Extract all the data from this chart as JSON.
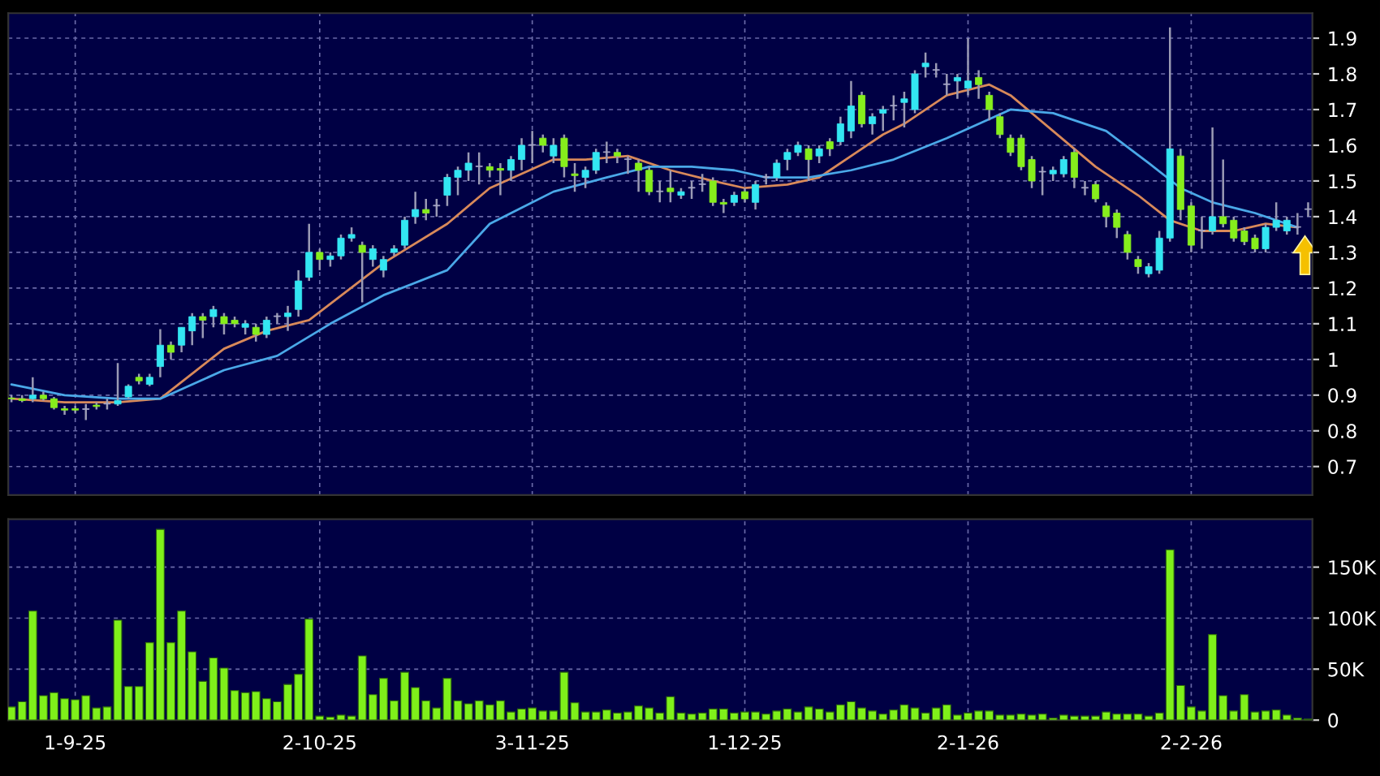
{
  "chart_data": [
    {
      "type": "candlestick",
      "tick_labels": "y",
      "grid": true,
      "categories": [
        null,
        null,
        null,
        null,
        null,
        null,
        null,
        null,
        null,
        null,
        null,
        null,
        null,
        null,
        null,
        null,
        null,
        null,
        null,
        null,
        null,
        null,
        null,
        null,
        null,
        null,
        null,
        null,
        null,
        null,
        null,
        null,
        null,
        null,
        null,
        null,
        null,
        null,
        null,
        null,
        null,
        null,
        null,
        null,
        null,
        null,
        null,
        null,
        null,
        null,
        null,
        null,
        null,
        null,
        null,
        null,
        null,
        null,
        null,
        null,
        null,
        null,
        null,
        null,
        null,
        null,
        null,
        null,
        null,
        null,
        null,
        null,
        null,
        null,
        null,
        null,
        null,
        null,
        null,
        null,
        null,
        null,
        null,
        null,
        null,
        null,
        null,
        null,
        null,
        null,
        null,
        null,
        null,
        null,
        null,
        null,
        null,
        null,
        null,
        null,
        null,
        null,
        null,
        null,
        null,
        null,
        null,
        null,
        null,
        null,
        null,
        null,
        null,
        null,
        null,
        null,
        null,
        null,
        null,
        null,
        null,
        null,
        null
      ],
      "ohlc": [
        [
          0.89,
          0.9,
          0.88,
          0.89
        ],
        [
          0.89,
          0.9,
          0.88,
          0.885
        ],
        [
          0.89,
          0.95,
          0.88,
          0.9
        ],
        [
          0.9,
          0.91,
          0.885,
          0.89
        ],
        [
          0.89,
          0.895,
          0.86,
          0.865
        ],
        [
          0.862,
          0.87,
          0.845,
          0.858
        ],
        [
          0.862,
          0.87,
          0.85,
          0.858
        ],
        [
          0.86,
          0.875,
          0.83,
          0.86
        ],
        [
          0.872,
          0.88,
          0.86,
          0.868
        ],
        [
          0.875,
          0.89,
          0.86,
          0.875
        ],
        [
          0.875,
          0.99,
          0.87,
          0.885
        ],
        [
          0.895,
          0.93,
          0.89,
          0.925
        ],
        [
          0.95,
          0.96,
          0.93,
          0.94
        ],
        [
          0.93,
          0.96,
          0.925,
          0.95
        ],
        [
          0.98,
          1.085,
          0.95,
          1.04
        ],
        [
          1.04,
          1.05,
          1.0,
          1.02
        ],
        [
          1.04,
          1.09,
          1.02,
          1.09
        ],
        [
          1.08,
          1.13,
          1.04,
          1.12
        ],
        [
          1.12,
          1.13,
          1.06,
          1.11
        ],
        [
          1.12,
          1.15,
          1.09,
          1.14
        ],
        [
          1.12,
          1.13,
          1.07,
          1.1
        ],
        [
          1.11,
          1.12,
          1.09,
          1.1
        ],
        [
          1.09,
          1.11,
          1.07,
          1.1
        ],
        [
          1.09,
          1.1,
          1.05,
          1.07
        ],
        [
          1.07,
          1.12,
          1.06,
          1.11
        ],
        [
          1.12,
          1.13,
          1.1,
          1.12
        ],
        [
          1.12,
          1.15,
          1.08,
          1.13
        ],
        [
          1.14,
          1.25,
          1.12,
          1.22
        ],
        [
          1.23,
          1.38,
          1.22,
          1.3
        ],
        [
          1.3,
          1.31,
          1.25,
          1.28
        ],
        [
          1.28,
          1.3,
          1.26,
          1.29
        ],
        [
          1.29,
          1.35,
          1.28,
          1.34
        ],
        [
          1.34,
          1.37,
          1.33,
          1.35
        ],
        [
          1.32,
          1.33,
          1.16,
          1.3
        ],
        [
          1.28,
          1.32,
          1.26,
          1.31
        ],
        [
          1.25,
          1.29,
          1.23,
          1.28
        ],
        [
          1.3,
          1.32,
          1.29,
          1.31
        ],
        [
          1.32,
          1.4,
          1.31,
          1.39
        ],
        [
          1.4,
          1.47,
          1.38,
          1.42
        ],
        [
          1.42,
          1.45,
          1.39,
          1.41
        ],
        [
          1.43,
          1.45,
          1.4,
          1.43
        ],
        [
          1.46,
          1.52,
          1.43,
          1.51
        ],
        [
          1.51,
          1.54,
          1.46,
          1.53
        ],
        [
          1.53,
          1.58,
          1.5,
          1.55
        ],
        [
          1.54,
          1.58,
          1.49,
          1.54
        ],
        [
          1.54,
          1.55,
          1.51,
          1.53
        ],
        [
          1.535,
          1.55,
          1.46,
          1.53
        ],
        [
          1.53,
          1.57,
          1.5,
          1.56
        ],
        [
          1.56,
          1.62,
          1.53,
          1.6
        ],
        [
          1.6,
          1.64,
          1.55,
          1.6
        ],
        [
          1.62,
          1.63,
          1.58,
          1.6
        ],
        [
          1.57,
          1.62,
          1.55,
          1.6
        ],
        [
          1.62,
          1.63,
          1.51,
          1.54
        ],
        [
          1.52,
          1.55,
          1.47,
          1.515
        ],
        [
          1.51,
          1.54,
          1.48,
          1.53
        ],
        [
          1.53,
          1.59,
          1.52,
          1.58
        ],
        [
          1.58,
          1.61,
          1.55,
          1.58
        ],
        [
          1.58,
          1.59,
          1.55,
          1.57
        ],
        [
          1.56,
          1.57,
          1.52,
          1.56
        ],
        [
          1.55,
          1.56,
          1.47,
          1.53
        ],
        [
          1.53,
          1.54,
          1.46,
          1.47
        ],
        [
          1.47,
          1.5,
          1.44,
          1.47
        ],
        [
          1.48,
          1.53,
          1.44,
          1.47
        ],
        [
          1.46,
          1.48,
          1.45,
          1.47
        ],
        [
          1.48,
          1.5,
          1.45,
          1.48
        ],
        [
          1.49,
          1.52,
          1.47,
          1.49
        ],
        [
          1.5,
          1.51,
          1.43,
          1.44
        ],
        [
          1.44,
          1.45,
          1.41,
          1.435
        ],
        [
          1.44,
          1.47,
          1.43,
          1.46
        ],
        [
          1.47,
          1.48,
          1.44,
          1.45
        ],
        [
          1.44,
          1.5,
          1.42,
          1.49
        ],
        [
          1.51,
          1.52,
          1.49,
          1.51
        ],
        [
          1.51,
          1.56,
          1.5,
          1.55
        ],
        [
          1.56,
          1.59,
          1.53,
          1.58
        ],
        [
          1.58,
          1.61,
          1.57,
          1.6
        ],
        [
          1.59,
          1.6,
          1.5,
          1.56
        ],
        [
          1.57,
          1.6,
          1.55,
          1.59
        ],
        [
          1.61,
          1.62,
          1.57,
          1.59
        ],
        [
          1.61,
          1.68,
          1.6,
          1.66
        ],
        [
          1.64,
          1.78,
          1.62,
          1.71
        ],
        [
          1.74,
          1.75,
          1.65,
          1.66
        ],
        [
          1.66,
          1.69,
          1.63,
          1.68
        ],
        [
          1.69,
          1.71,
          1.64,
          1.7
        ],
        [
          1.71,
          1.74,
          1.67,
          1.71
        ],
        [
          1.72,
          1.75,
          1.65,
          1.73
        ],
        [
          1.7,
          1.81,
          1.69,
          1.8
        ],
        [
          1.82,
          1.86,
          1.79,
          1.83
        ],
        [
          1.81,
          1.83,
          1.79,
          1.81
        ],
        [
          1.77,
          1.8,
          1.74,
          1.77
        ],
        [
          1.78,
          1.8,
          1.73,
          1.79
        ],
        [
          1.76,
          1.9,
          1.74,
          1.78
        ],
        [
          1.79,
          1.81,
          1.73,
          1.77
        ],
        [
          1.74,
          1.75,
          1.67,
          1.7
        ],
        [
          1.68,
          1.69,
          1.62,
          1.63
        ],
        [
          1.62,
          1.63,
          1.57,
          1.58
        ],
        [
          1.62,
          1.63,
          1.53,
          1.54
        ],
        [
          1.56,
          1.57,
          1.48,
          1.5
        ],
        [
          1.525,
          1.54,
          1.46,
          1.525
        ],
        [
          1.52,
          1.54,
          1.5,
          1.53
        ],
        [
          1.52,
          1.57,
          1.51,
          1.56
        ],
        [
          1.58,
          1.59,
          1.48,
          1.51
        ],
        [
          1.48,
          1.5,
          1.46,
          1.48
        ],
        [
          1.49,
          1.5,
          1.44,
          1.45
        ],
        [
          1.43,
          1.44,
          1.37,
          1.4
        ],
        [
          1.41,
          1.42,
          1.34,
          1.37
        ],
        [
          1.35,
          1.36,
          1.28,
          1.3
        ],
        [
          1.28,
          1.29,
          1.24,
          1.26
        ],
        [
          1.24,
          1.27,
          1.23,
          1.26
        ],
        [
          1.25,
          1.36,
          1.24,
          1.34
        ],
        [
          1.34,
          1.93,
          1.33,
          1.59
        ],
        [
          1.57,
          1.59,
          1.39,
          1.42
        ],
        [
          1.43,
          1.44,
          1.3,
          1.32
        ],
        [
          1.36,
          1.4,
          1.31,
          1.36
        ],
        [
          1.36,
          1.65,
          1.35,
          1.4
        ],
        [
          1.4,
          1.56,
          1.37,
          1.38
        ],
        [
          1.39,
          1.4,
          1.33,
          1.34
        ],
        [
          1.36,
          1.37,
          1.32,
          1.33
        ],
        [
          1.34,
          1.35,
          1.3,
          1.31
        ],
        [
          1.31,
          1.38,
          1.3,
          1.37
        ],
        [
          1.37,
          1.44,
          1.36,
          1.39
        ],
        [
          1.36,
          1.4,
          1.35,
          1.39
        ],
        [
          1.37,
          1.41,
          1.35,
          1.37
        ],
        [
          1.42,
          1.44,
          1.4,
          1.42
        ]
      ],
      "colors": [
        "#86ee1c",
        "#86ee1c",
        "#33e6f2",
        "#86ee1c",
        "#86ee1c",
        "#86ee1c",
        "#86ee1c",
        "#a8a8c8",
        "#86ee1c",
        "#a8a8c8",
        "#33e6f2",
        "#33e6f2",
        "#86ee1c",
        "#33e6f2",
        "#33e6f2",
        "#86ee1c",
        "#33e6f2",
        "#33e6f2",
        "#86ee1c",
        "#33e6f2",
        "#86ee1c",
        "#86ee1c",
        "#33e6f2",
        "#86ee1c",
        "#33e6f2",
        "#a8a8c8",
        "#33e6f2",
        "#33e6f2",
        "#33e6f2",
        "#86ee1c",
        "#33e6f2",
        "#33e6f2",
        "#33e6f2",
        "#86ee1c",
        "#33e6f2",
        "#33e6f2",
        "#33e6f2",
        "#33e6f2",
        "#33e6f2",
        "#86ee1c",
        "#a8a8c8",
        "#33e6f2",
        "#33e6f2",
        "#33e6f2",
        "#a8a8c8",
        "#86ee1c",
        "#86ee1c",
        "#33e6f2",
        "#33e6f2",
        "#a8a8c8",
        "#86ee1c",
        "#33e6f2",
        "#86ee1c",
        "#86ee1c",
        "#33e6f2",
        "#33e6f2",
        "#a8a8c8",
        "#86ee1c",
        "#a8a8c8",
        "#86ee1c",
        "#86ee1c",
        "#a8a8c8",
        "#86ee1c",
        "#33e6f2",
        "#a8a8c8",
        "#a8a8c8",
        "#86ee1c",
        "#86ee1c",
        "#33e6f2",
        "#86ee1c",
        "#33e6f2",
        "#a8a8c8",
        "#33e6f2",
        "#33e6f2",
        "#33e6f2",
        "#86ee1c",
        "#33e6f2",
        "#86ee1c",
        "#33e6f2",
        "#33e6f2",
        "#86ee1c",
        "#33e6f2",
        "#33e6f2",
        "#a8a8c8",
        "#33e6f2",
        "#33e6f2",
        "#33e6f2",
        "#a8a8c8",
        "#a8a8c8",
        "#33e6f2",
        "#33e6f2",
        "#86ee1c",
        "#86ee1c",
        "#86ee1c",
        "#86ee1c",
        "#86ee1c",
        "#86ee1c",
        "#a8a8c8",
        "#33e6f2",
        "#33e6f2",
        "#86ee1c",
        "#a8a8c8",
        "#86ee1c",
        "#86ee1c",
        "#86ee1c",
        "#86ee1c",
        "#86ee1c",
        "#33e6f2",
        "#33e6f2",
        "#33e6f2",
        "#86ee1c",
        "#86ee1c",
        "#a8a8c8",
        "#33e6f2",
        "#86ee1c",
        "#86ee1c",
        "#86ee1c",
        "#86ee1c",
        "#33e6f2",
        "#33e6f2",
        "#33e6f2",
        "#a8a8c8",
        "#a8a8c8"
      ],
      "series": [
        {
          "type": "line",
          "color": "#d8895a",
          "values": [
            0.89,
            null,
            null,
            null,
            null,
            0.88,
            null,
            null,
            null,
            null,
            0.88,
            null,
            null,
            null,
            0.89,
            null,
            null,
            0.96,
            null,
            null,
            1.03,
            null,
            null,
            null,
            1.08,
            null,
            null,
            null,
            1.11,
            null,
            null,
            null,
            null,
            null,
            null,
            1.27,
            null,
            null,
            null,
            null,
            null,
            1.38,
            null,
            null,
            null,
            1.48,
            null,
            null,
            null,
            null,
            null,
            1.56,
            null,
            null,
            1.56,
            null,
            null,
            null,
            1.57,
            null,
            null,
            null,
            1.53,
            null,
            null,
            null,
            1.5,
            null,
            null,
            1.48,
            null,
            null,
            null,
            1.49,
            null,
            null,
            1.51,
            null,
            null,
            null,
            1.59,
            null,
            1.63,
            null,
            1.66,
            null,
            null,
            null,
            1.74,
            null,
            null,
            null,
            1.77,
            null,
            1.74,
            null,
            null,
            null,
            1.64,
            null,
            null,
            null,
            1.54,
            null,
            null,
            null,
            1.46,
            null,
            null,
            1.39,
            null,
            null,
            1.36,
            null,
            null,
            1.36,
            null,
            null,
            1.38,
            null,
            null,
            1.37,
            null
          ]
        },
        {
          "type": "line",
          "color": "#4aa8e8",
          "values": [
            0.93,
            null,
            null,
            null,
            null,
            0.9,
            null,
            null,
            null,
            null,
            0.89,
            null,
            null,
            null,
            0.89,
            null,
            null,
            null,
            null,
            null,
            0.97,
            null,
            null,
            null,
            null,
            1.01,
            null,
            null,
            null,
            null,
            1.1,
            null,
            null,
            null,
            null,
            1.18,
            null,
            null,
            null,
            null,
            null,
            1.25,
            null,
            null,
            null,
            1.38,
            null,
            null,
            null,
            null,
            null,
            1.47,
            null,
            null,
            null,
            null,
            1.51,
            null,
            null,
            null,
            1.54,
            null,
            null,
            null,
            1.54,
            null,
            null,
            null,
            1.53,
            null,
            null,
            1.51,
            null,
            null,
            null,
            1.51,
            null,
            null,
            null,
            1.53,
            null,
            null,
            null,
            1.56,
            null,
            null,
            null,
            null,
            1.62,
            null,
            null,
            null,
            null,
            null,
            1.7,
            null,
            null,
            null,
            1.69,
            null,
            null,
            null,
            null,
            1.64,
            null,
            null,
            null,
            1.55,
            null,
            null,
            1.48,
            null,
            null,
            1.44,
            null,
            null,
            null,
            1.41,
            null,
            null,
            null,
            1.37,
            null
          ]
        }
      ],
      "ylim": [
        0.62,
        1.97
      ],
      "yticks": [
        0.7,
        0.8,
        0.9,
        1,
        1.1,
        1.2,
        1.3,
        1.4,
        1.5,
        1.6,
        1.7,
        1.8,
        1.9
      ]
    },
    {
      "type": "bar",
      "grid": true,
      "color": "#7ff01a",
      "categories": [
        null,
        null,
        null,
        null,
        null,
        null,
        "1-9-25",
        null,
        null,
        null,
        null,
        null,
        null,
        null,
        null,
        null,
        null,
        null,
        null,
        null,
        null,
        null,
        null,
        null,
        null,
        null,
        null,
        null,
        null,
        "2-10-25",
        null,
        null,
        null,
        null,
        null,
        null,
        null,
        null,
        null,
        null,
        null,
        null,
        null,
        null,
        null,
        null,
        null,
        null,
        null,
        "3-11-25",
        null,
        null,
        null,
        null,
        null,
        null,
        null,
        null,
        null,
        null,
        null,
        null,
        null,
        null,
        null,
        null,
        null,
        null,
        null,
        "1-12-25",
        null,
        null,
        null,
        null,
        null,
        null,
        null,
        null,
        null,
        null,
        null,
        null,
        null,
        null,
        null,
        null,
        null,
        null,
        null,
        null,
        "2-1-26",
        null,
        null,
        null,
        null,
        null,
        null,
        null,
        null,
        null,
        null,
        null,
        null,
        null,
        null,
        null,
        null,
        null,
        null,
        null,
        null,
        "2-2-26",
        null,
        null,
        null,
        null,
        null,
        null,
        null,
        null,
        null,
        null,
        null
      ],
      "values": [
        13,
        18,
        107,
        24,
        27,
        21,
        20,
        24,
        12,
        13,
        98,
        33,
        33,
        76,
        187,
        76,
        107,
        67,
        38,
        61,
        51,
        29,
        27,
        28,
        21,
        18,
        35,
        45,
        99,
        4,
        3,
        5,
        4,
        63,
        25,
        41,
        19,
        47,
        32,
        19,
        12,
        41,
        19,
        16,
        19,
        15,
        19,
        8,
        11,
        12,
        9,
        9,
        47,
        17,
        8,
        8,
        10,
        7,
        8,
        14,
        12,
        7,
        23,
        7,
        6,
        7,
        11,
        11,
        7,
        8,
        8,
        6,
        9,
        11,
        8,
        13,
        11,
        8,
        15,
        18,
        12,
        9,
        6,
        10,
        15,
        12,
        7,
        12,
        15,
        5,
        7,
        9,
        9,
        5,
        5,
        6,
        5,
        6,
        2,
        5,
        4,
        4,
        4,
        8,
        6,
        6,
        6,
        4,
        7,
        167,
        34,
        13,
        9,
        84,
        24,
        9,
        25,
        8,
        9,
        10,
        5,
        2,
        1
      ],
      "ylim": [
        0,
        197
      ],
      "yticks": [
        0,
        {
          "value": 50,
          "label": "50K"
        },
        {
          "value": 100,
          "label": "100K"
        },
        {
          "value": 150,
          "label": "150K"
        }
      ]
    }
  ]
}
